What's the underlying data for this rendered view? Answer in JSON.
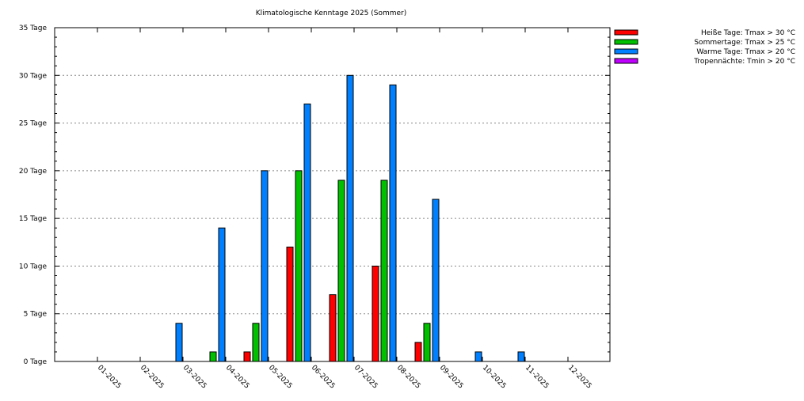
{
  "chart_data": {
    "type": "bar",
    "title": "Klimatologische Kenntage 2025 (Sommer)",
    "xlabel": "",
    "ylabel": "",
    "ylim": [
      0,
      35
    ],
    "y_ticks": [
      0,
      5,
      10,
      15,
      20,
      25,
      30,
      35
    ],
    "y_tick_labels": [
      "0 Tage",
      "5 Tage",
      "10 Tage",
      "15 Tage",
      "20 Tage",
      "25 Tage",
      "30 Tage",
      "35 Tage"
    ],
    "grid": "horizontal-dotted",
    "legend_position": "top-right",
    "categories": [
      "01-2025",
      "02-2025",
      "03-2025",
      "04-2025",
      "05-2025",
      "06-2025",
      "07-2025",
      "08-2025",
      "09-2025",
      "10-2025",
      "11-2025",
      "12-2025"
    ],
    "series": [
      {
        "name": "Heiße Tage: Tmax > 30 °C",
        "color": "#ff0000",
        "values": [
          0,
          0,
          0,
          0,
          1,
          12,
          7,
          10,
          2,
          0,
          0,
          0
        ]
      },
      {
        "name": "Sommertage: Tmax > 25 °C",
        "color": "#00c000",
        "values": [
          0,
          0,
          0,
          1,
          4,
          20,
          19,
          19,
          4,
          0,
          0,
          0
        ]
      },
      {
        "name": "Warme Tage: Tmax > 20 °C",
        "color": "#0080ff",
        "values": [
          0,
          0,
          4,
          14,
          20,
          27,
          30,
          29,
          17,
          1,
          1,
          0
        ]
      },
      {
        "name": "Tropennächte: Tmin > 20 °C",
        "color": "#c000ff",
        "values": [
          0,
          0,
          0,
          0,
          0,
          0,
          0,
          0,
          0,
          0,
          0,
          0
        ]
      }
    ]
  }
}
